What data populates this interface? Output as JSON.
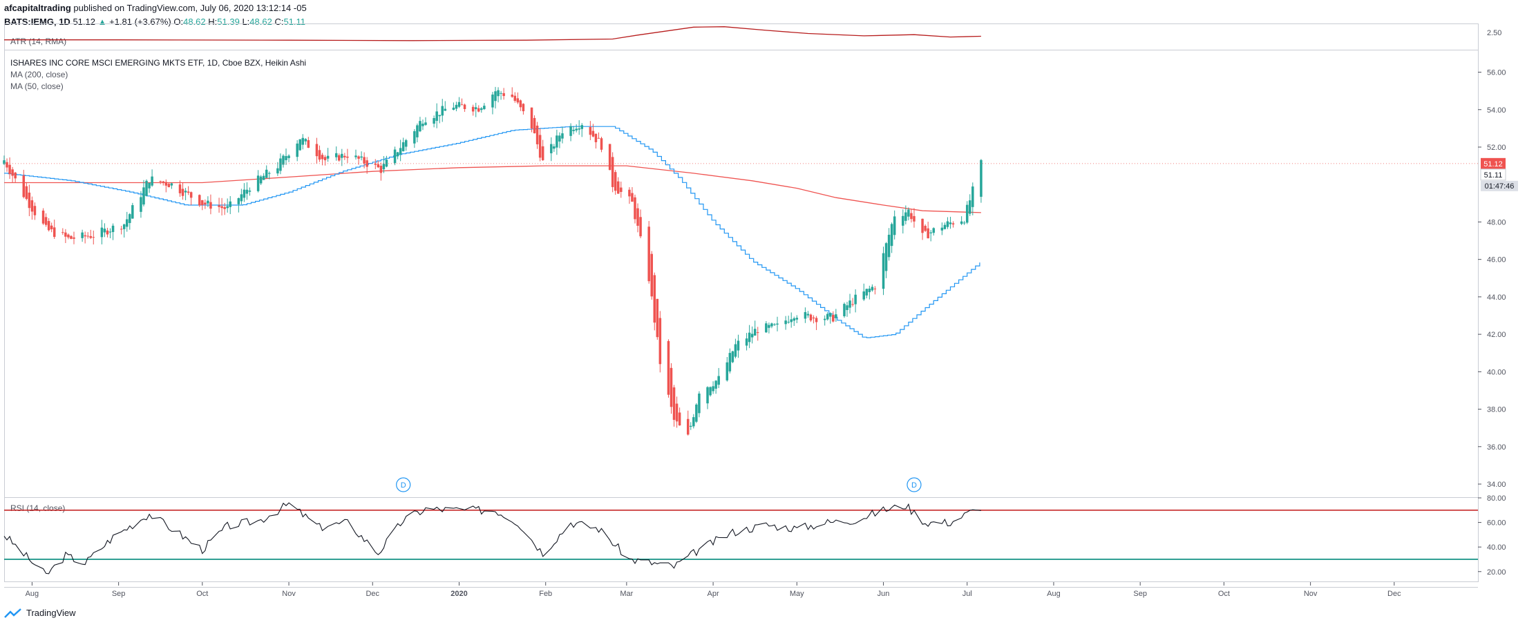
{
  "header": {
    "author": "afcapitaltrading",
    "published": "published on TradingView.com, July 06, 2020 13:12:14 -05",
    "symbol": "BATS:IEMG, 1D",
    "last": "51.12",
    "change": "+1.81 (+3.67%)",
    "o_label": "O:",
    "o_val": "48.62",
    "h_label": "H:",
    "h_val": "51.39",
    "l_label": "L:",
    "l_val": "48.62",
    "c_label": "C:",
    "c_val": "51.11"
  },
  "panels": {
    "atr_label": "ATR (14, RMA)",
    "main_title": "ISHARES INC CORE MSCI EMERGING MKTS ETF, 1D, Cboe BZX, Heikin Ashi",
    "ma200_label": "MA (200, close)",
    "ma50_label": "MA (50, close)",
    "rsi_label": "RSI (14, close)"
  },
  "price_labels": {
    "last_price": "51.12",
    "close_price": "51.11",
    "countdown": "01:47:46"
  },
  "atr_axis": "2.50",
  "dividend_marker": "D",
  "brand": "TradingView",
  "colors": {
    "up": "#26a69a",
    "down": "#ef5350",
    "ma200": "#ef5350",
    "ma50": "#2196f3",
    "rsi_line": "#131722",
    "rsi_upper": "#c62828",
    "rsi_lower": "#00897b",
    "atr": "#b71c1c"
  },
  "chart_data": {
    "type": "candlestick",
    "price_axis": [
      "56.00",
      "54.00",
      "52.00",
      "48.00",
      "46.00",
      "44.00",
      "42.00",
      "40.00",
      "38.00",
      "36.00",
      "34.00"
    ],
    "price_range": [
      33.3,
      57.2
    ],
    "rsi_axis": [
      "80.00",
      "60.00",
      "40.00",
      "20.00"
    ],
    "rsi_range": [
      12,
      80
    ],
    "rsi_levels": [
      70,
      30
    ],
    "x_labels": [
      "Aug",
      "Sep",
      "Oct",
      "Nov",
      "Dec",
      "2020",
      "Feb",
      "Mar",
      "Apr",
      "May",
      "Jun",
      "Jul",
      "Aug",
      "Sep",
      "Oct",
      "Nov",
      "Dec"
    ],
    "date_start": "2019-07-22",
    "date_end": "2020-12-31",
    "dividend_dates": [
      "2019-12-12",
      "2020-06-12"
    ],
    "price_points": [
      [
        "2019-07-22",
        51.3
      ],
      [
        "2019-07-30",
        49.2
      ],
      [
        "2019-08-06",
        47.6
      ],
      [
        "2019-08-14",
        47.1
      ],
      [
        "2019-08-23",
        47.3
      ],
      [
        "2019-09-03",
        47.9
      ],
      [
        "2019-09-12",
        50.3
      ],
      [
        "2019-09-20",
        50.0
      ],
      [
        "2019-10-01",
        49.0
      ],
      [
        "2019-10-10",
        48.7
      ],
      [
        "2019-10-18",
        49.9
      ],
      [
        "2019-10-28",
        51.0
      ],
      [
        "2019-11-05",
        52.5
      ],
      [
        "2019-11-14",
        51.3
      ],
      [
        "2019-11-22",
        51.6
      ],
      [
        "2019-12-04",
        50.8
      ],
      [
        "2019-12-12",
        52.2
      ],
      [
        "2019-12-19",
        53.5
      ],
      [
        "2019-12-30",
        54.2
      ],
      [
        "2020-01-08",
        54.1
      ],
      [
        "2020-01-14",
        55.0
      ],
      [
        "2020-01-20",
        54.7
      ],
      [
        "2020-01-27",
        53.1
      ],
      [
        "2020-01-31",
        51.2
      ],
      [
        "2020-02-07",
        52.9
      ],
      [
        "2020-02-14",
        53.3
      ],
      [
        "2020-02-21",
        52.1
      ],
      [
        "2020-02-25",
        50.0
      ],
      [
        "2020-03-03",
        49.0
      ],
      [
        "2020-03-09",
        45.0
      ],
      [
        "2020-03-13",
        40.5
      ],
      [
        "2020-03-18",
        37.4
      ],
      [
        "2020-03-23",
        36.5
      ],
      [
        "2020-03-27",
        39.0
      ],
      [
        "2020-04-03",
        39.6
      ],
      [
        "2020-04-09",
        41.4
      ],
      [
        "2020-04-17",
        42.3
      ],
      [
        "2020-04-24",
        42.4
      ],
      [
        "2020-04-30",
        43.1
      ],
      [
        "2020-05-07",
        42.9
      ],
      [
        "2020-05-14",
        42.9
      ],
      [
        "2020-05-21",
        43.8
      ],
      [
        "2020-05-29",
        44.6
      ],
      [
        "2020-06-05",
        48.4
      ],
      [
        "2020-06-10",
        48.6
      ],
      [
        "2020-06-15",
        47.2
      ],
      [
        "2020-06-22",
        47.8
      ],
      [
        "2020-06-30",
        48.2
      ],
      [
        "2020-07-06",
        51.1
      ]
    ],
    "ma200": [
      [
        "2019-07-22",
        50.1
      ],
      [
        "2019-09-01",
        50.1
      ],
      [
        "2019-10-01",
        50.1
      ],
      [
        "2019-11-01",
        50.4
      ],
      [
        "2019-12-01",
        50.7
      ],
      [
        "2020-01-01",
        50.9
      ],
      [
        "2020-02-01",
        51.0
      ],
      [
        "2020-03-01",
        51.0
      ],
      [
        "2020-03-25",
        50.6
      ],
      [
        "2020-04-15",
        50.2
      ],
      [
        "2020-05-01",
        49.8
      ],
      [
        "2020-05-15",
        49.3
      ],
      [
        "2020-06-01",
        48.9
      ],
      [
        "2020-06-15",
        48.6
      ],
      [
        "2020-07-06",
        48.5
      ]
    ],
    "ma50": [
      [
        "2019-07-22",
        50.6
      ],
      [
        "2019-08-15",
        50.2
      ],
      [
        "2019-09-05",
        49.6
      ],
      [
        "2019-09-25",
        48.9
      ],
      [
        "2019-10-15",
        48.9
      ],
      [
        "2019-11-01",
        49.6
      ],
      [
        "2019-11-20",
        50.7
      ],
      [
        "2019-12-10",
        51.6
      ],
      [
        "2019-12-31",
        52.2
      ],
      [
        "2020-01-20",
        52.9
      ],
      [
        "2020-02-10",
        53.1
      ],
      [
        "2020-02-25",
        53.1
      ],
      [
        "2020-03-10",
        51.8
      ],
      [
        "2020-03-20",
        50.3
      ],
      [
        "2020-04-01",
        48.0
      ],
      [
        "2020-04-15",
        45.9
      ],
      [
        "2020-05-01",
        44.4
      ],
      [
        "2020-05-15",
        42.8
      ],
      [
        "2020-05-25",
        41.8
      ],
      [
        "2020-06-05",
        42.0
      ],
      [
        "2020-06-15",
        43.3
      ],
      [
        "2020-07-06",
        45.9
      ]
    ],
    "rsi": [
      [
        "2019-07-22",
        50
      ],
      [
        "2019-07-31",
        30
      ],
      [
        "2019-08-06",
        17
      ],
      [
        "2019-08-13",
        33
      ],
      [
        "2019-08-20",
        27
      ],
      [
        "2019-08-30",
        48
      ],
      [
        "2019-09-12",
        67
      ],
      [
        "2019-09-20",
        55
      ],
      [
        "2019-10-01",
        38
      ],
      [
        "2019-10-10",
        57
      ],
      [
        "2019-10-22",
        62
      ],
      [
        "2019-11-01",
        75
      ],
      [
        "2019-11-12",
        56
      ],
      [
        "2019-11-22",
        60
      ],
      [
        "2019-12-03",
        35
      ],
      [
        "2019-12-12",
        62
      ],
      [
        "2019-12-20",
        71
      ],
      [
        "2020-01-02",
        70
      ],
      [
        "2020-01-14",
        70
      ],
      [
        "2020-01-22",
        60
      ],
      [
        "2020-01-31",
        35
      ],
      [
        "2020-02-10",
        60
      ],
      [
        "2020-02-20",
        55
      ],
      [
        "2020-03-02",
        30
      ],
      [
        "2020-03-10",
        27
      ],
      [
        "2020-03-18",
        24
      ],
      [
        "2020-03-27",
        38
      ],
      [
        "2020-04-08",
        52
      ],
      [
        "2020-04-20",
        58
      ],
      [
        "2020-05-01",
        55
      ],
      [
        "2020-05-12",
        60
      ],
      [
        "2020-05-22",
        62
      ],
      [
        "2020-06-01",
        70
      ],
      [
        "2020-06-09",
        74
      ],
      [
        "2020-06-16",
        60
      ],
      [
        "2020-06-25",
        60
      ],
      [
        "2020-07-06",
        73
      ]
    ],
    "atr": [
      [
        "2019-07-22",
        0.9
      ],
      [
        "2019-09-01",
        0.9
      ],
      [
        "2019-11-01",
        0.85
      ],
      [
        "2019-12-15",
        0.8
      ],
      [
        "2020-01-25",
        0.85
      ],
      [
        "2020-02-25",
        1.0
      ],
      [
        "2020-03-05",
        1.5
      ],
      [
        "2020-03-25",
        2.5
      ],
      [
        "2020-04-05",
        2.55
      ],
      [
        "2020-04-20",
        2.1
      ],
      [
        "2020-05-05",
        1.7
      ],
      [
        "2020-05-25",
        1.4
      ],
      [
        "2020-06-12",
        1.55
      ],
      [
        "2020-06-25",
        1.25
      ],
      [
        "2020-07-06",
        1.35
      ]
    ]
  }
}
